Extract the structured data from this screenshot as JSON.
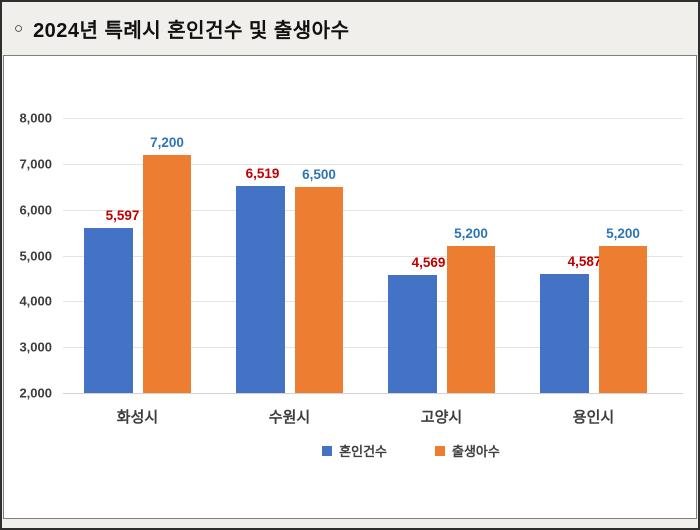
{
  "header": {
    "bullet": "○",
    "title": "2024년 특례시 혼인건수 및 출생아수"
  },
  "chart_data": {
    "type": "bar",
    "title": "2024년 특례시 혼인건수 및 출생아수",
    "categories": [
      "화성시",
      "수원시",
      "고양시",
      "용인시"
    ],
    "series": [
      {
        "name": "혼인건수",
        "values": [
          5597,
          6519,
          4569,
          4587
        ],
        "labels": [
          "5,597",
          "6,519",
          "4,569",
          "4,587"
        ],
        "color": "#4472C4",
        "label_color": "#C00000"
      },
      {
        "name": "출생아수",
        "values": [
          7200,
          6500,
          5200,
          5200
        ],
        "labels": [
          "7,200",
          "6,500",
          "5,200",
          "5,200"
        ],
        "color": "#ED7D31",
        "label_color": "#2E75B6"
      }
    ],
    "y_axis": {
      "min": 2000,
      "max": 8000,
      "step": 1000,
      "tick_labels": [
        "2,000",
        "3,000",
        "4,000",
        "5,000",
        "6,000",
        "7,000",
        "8,000"
      ]
    },
    "grid": true,
    "legend_position": "bottom"
  },
  "colors": {
    "page_background": "#f0efec",
    "panel_background": "#ffffff",
    "panel_border": "#7f7f7f",
    "outer_border": "#2e2e2e",
    "gridline": "#e4e4e4",
    "axis_text": "#3d3d3d",
    "bar_blue": "#4472C4",
    "bar_orange": "#ED7D31",
    "label_red": "#C00000",
    "label_blue": "#2E75B6"
  }
}
